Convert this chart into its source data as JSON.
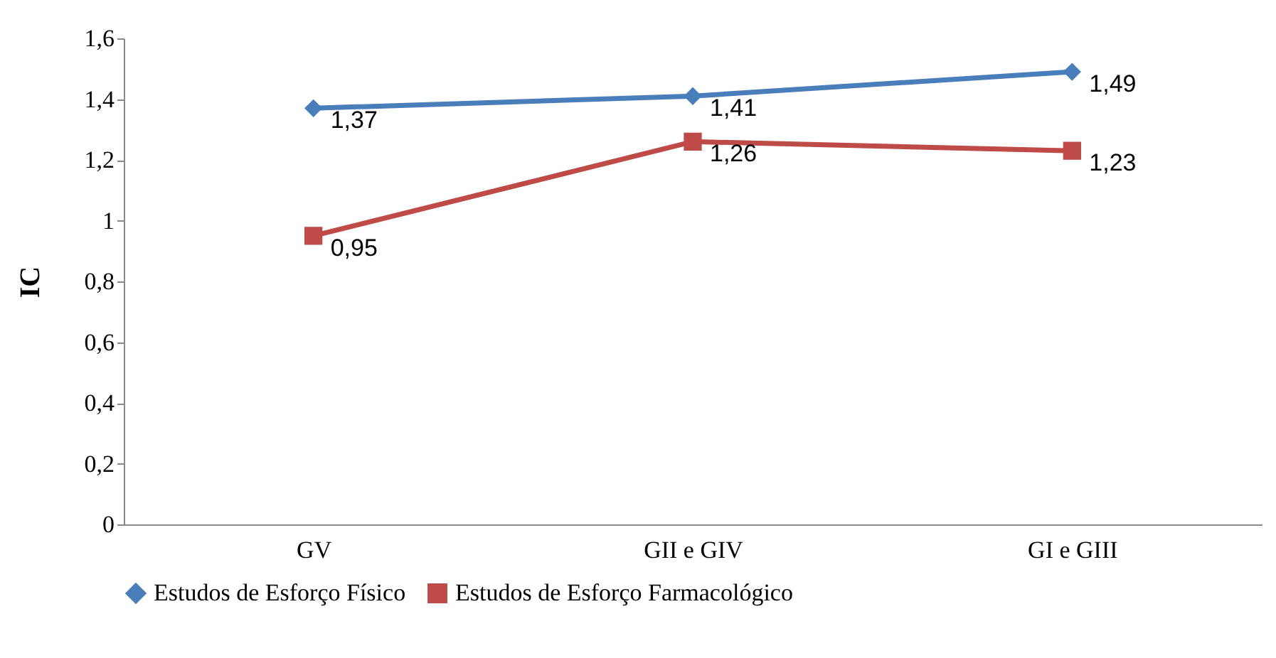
{
  "chart_data": {
    "type": "line",
    "ylabel": "IC",
    "categories": [
      "GV",
      "GII e GIV",
      "GI e GIII"
    ],
    "series": [
      {
        "name": "Estudos de Esforço Físico",
        "color": "#4a7ebb",
        "marker": "diamond",
        "values": [
          1.37,
          1.41,
          1.49
        ],
        "value_labels": [
          "1,37",
          "1,41",
          "1,49"
        ]
      },
      {
        "name": "Estudos de Esforço Farmacológico",
        "color": "#be4b48",
        "marker": "square",
        "values": [
          0.95,
          1.26,
          1.23
        ],
        "value_labels": [
          "0,95",
          "1,26",
          "1,23"
        ]
      }
    ],
    "ylim": [
      0,
      1.6
    ],
    "yticks": [
      {
        "value": 0,
        "label": "0"
      },
      {
        "value": 0.2,
        "label": "0,2"
      },
      {
        "value": 0.4,
        "label": "0,4"
      },
      {
        "value": 0.6,
        "label": "0,6"
      },
      {
        "value": 0.8,
        "label": "0,8"
      },
      {
        "value": 1,
        "label": "1"
      },
      {
        "value": 1.2,
        "label": "1,2"
      },
      {
        "value": 1.4,
        "label": "1,4"
      },
      {
        "value": 1.6,
        "label": "1,6"
      }
    ],
    "grid": false,
    "legend": "bottom",
    "line_style": "solid"
  }
}
